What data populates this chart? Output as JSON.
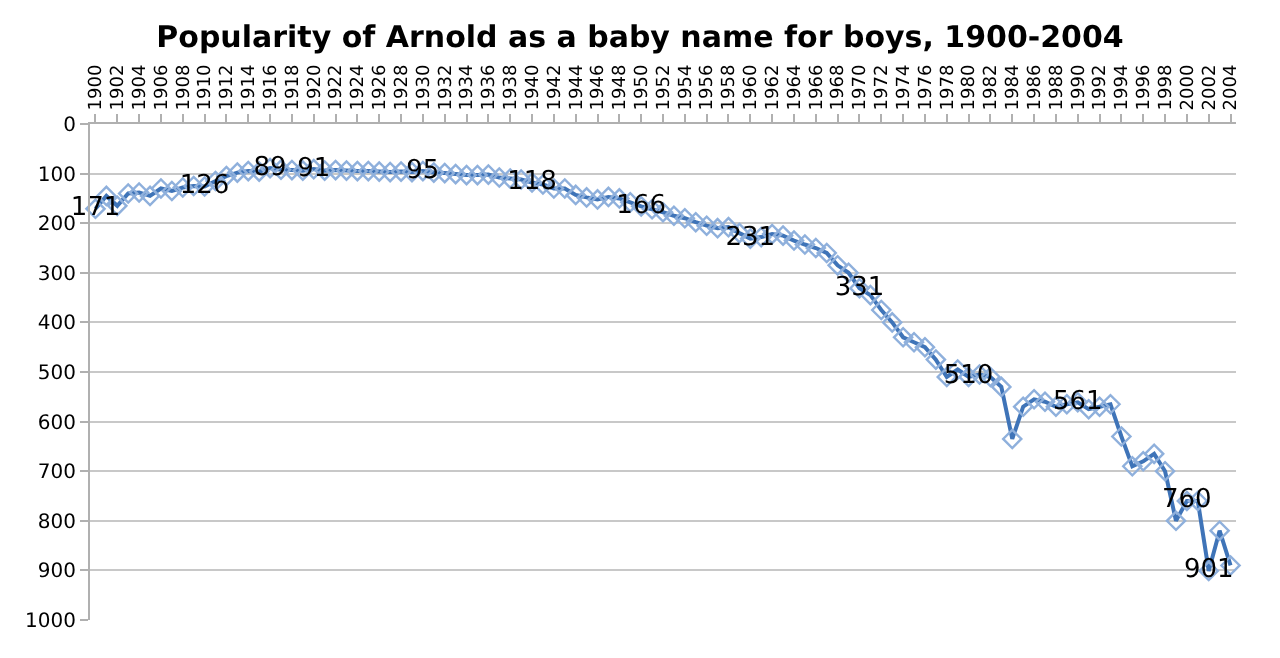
{
  "chart_data": {
    "type": "line",
    "title": "Popularity of Arnold as a baby name for boys, 1900-2004",
    "x": [
      1900,
      1901,
      1902,
      1903,
      1904,
      1905,
      1906,
      1907,
      1908,
      1909,
      1910,
      1911,
      1912,
      1913,
      1914,
      1915,
      1916,
      1917,
      1918,
      1919,
      1920,
      1921,
      1922,
      1923,
      1924,
      1925,
      1926,
      1927,
      1928,
      1929,
      1930,
      1931,
      1932,
      1933,
      1934,
      1935,
      1936,
      1937,
      1938,
      1939,
      1940,
      1941,
      1942,
      1943,
      1944,
      1945,
      1946,
      1947,
      1948,
      1949,
      1950,
      1951,
      1952,
      1953,
      1954,
      1955,
      1956,
      1957,
      1958,
      1959,
      1960,
      1961,
      1962,
      1963,
      1964,
      1965,
      1966,
      1967,
      1968,
      1969,
      1970,
      1971,
      1972,
      1973,
      1974,
      1975,
      1976,
      1977,
      1978,
      1979,
      1980,
      1981,
      1982,
      1983,
      1984,
      1985,
      1986,
      1987,
      1988,
      1989,
      1990,
      1991,
      1992,
      1993,
      1994,
      1995,
      1996,
      1997,
      1998,
      1999,
      2000,
      2001,
      2002,
      2003,
      2004
    ],
    "series": [
      {
        "color": "#3f74b8",
        "values": [
          171,
          145,
          165,
          140,
          138,
          145,
          130,
          135,
          128,
          125,
          126,
          115,
          105,
          98,
          95,
          96,
          89,
          92,
          93,
          94,
          91,
          94,
          93,
          94,
          95,
          95,
          96,
          97,
          96,
          97,
          95,
          98,
          99,
          101,
          103,
          103,
          102,
          108,
          110,
          112,
          118,
          122,
          130,
          130,
          143,
          148,
          152,
          147,
          150,
          158,
          166,
          172,
          178,
          185,
          190,
          198,
          205,
          210,
          208,
          220,
          231,
          228,
          222,
          225,
          235,
          243,
          250,
          260,
          285,
          300,
          331,
          345,
          375,
          400,
          430,
          440,
          450,
          475,
          510,
          495,
          510,
          505,
          510,
          530,
          635,
          570,
          555,
          560,
          570,
          565,
          561,
          575,
          570,
          565,
          630,
          690,
          680,
          665,
          700,
          800,
          760,
          760,
          901,
          820,
          890
        ],
        "value_labels": [
          "171",
          null,
          null,
          null,
          null,
          null,
          null,
          null,
          null,
          null,
          "126",
          null,
          null,
          null,
          null,
          null,
          "89",
          null,
          null,
          null,
          "91",
          null,
          null,
          null,
          null,
          null,
          null,
          null,
          null,
          null,
          "95",
          null,
          null,
          null,
          null,
          null,
          null,
          null,
          null,
          null,
          "118",
          null,
          null,
          null,
          null,
          null,
          null,
          null,
          null,
          null,
          "166",
          null,
          null,
          null,
          null,
          null,
          null,
          null,
          null,
          null,
          "231",
          null,
          null,
          null,
          null,
          null,
          null,
          null,
          null,
          null,
          "331",
          null,
          null,
          null,
          null,
          null,
          null,
          null,
          null,
          null,
          "510",
          null,
          null,
          null,
          null,
          null,
          null,
          null,
          null,
          null,
          "561",
          null,
          null,
          null,
          null,
          null,
          null,
          null,
          null,
          null,
          "760",
          null,
          "901",
          null,
          null
        ]
      }
    ],
    "xlim": [
      1899.5,
      2004.5
    ],
    "xticks": [
      1900,
      1902,
      1904,
      1906,
      1908,
      1910,
      1912,
      1914,
      1916,
      1918,
      1920,
      1922,
      1924,
      1926,
      1928,
      1930,
      1932,
      1934,
      1936,
      1938,
      1940,
      1942,
      1944,
      1946,
      1948,
      1950,
      1952,
      1954,
      1956,
      1958,
      1960,
      1962,
      1964,
      1966,
      1968,
      1970,
      1972,
      1974,
      1976,
      1978,
      1980,
      1982,
      1984,
      1986,
      1988,
      1990,
      1992,
      1994,
      1996,
      1998,
      2000,
      2002,
      2004
    ],
    "ylim": [
      1000,
      0
    ],
    "yticks": [
      0,
      100,
      200,
      300,
      400,
      500,
      600,
      700,
      800,
      900,
      1000
    ],
    "grid": "y",
    "marker": "diamond",
    "line_style": "solid"
  }
}
